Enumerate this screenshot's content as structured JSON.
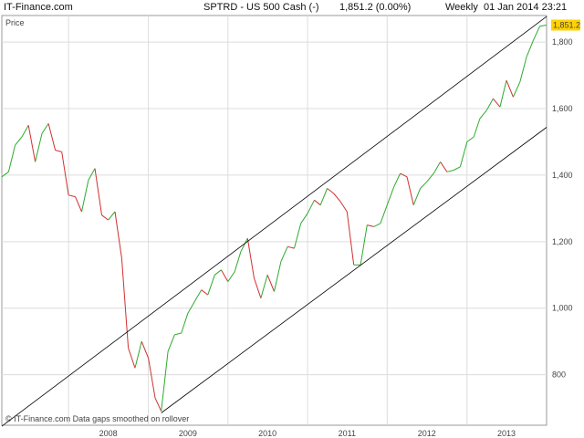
{
  "header": {
    "brand": "IT-Finance.com",
    "symbol_line": "SPTRD - US 500 Cash (-)",
    "last_line": "1,851.2 (0.00%)",
    "period_line": "Weekly  01 Jan 2014 23:21"
  },
  "legend_label": "Price",
  "footer_note": "© IT-Finance.com  Data gaps smoothed on rollover",
  "colors": {
    "up": "#2eaa2e",
    "down": "#d03030",
    "channel": "#000000",
    "last_badge": "#ffd200",
    "grid": "#dcdcdc"
  },
  "chart_data": {
    "type": "line",
    "title": "SPTRD - US 500 Cash (-)",
    "xlabel": "",
    "ylabel": "",
    "x_ticks": [
      "2008",
      "2009",
      "2010",
      "2011",
      "2012",
      "2013"
    ],
    "y_ticks": [
      "800",
      "1,000",
      "1,200",
      "1,400",
      "1,600",
      "1,800"
    ],
    "y_tick_values": [
      800,
      1000,
      1200,
      1400,
      1600,
      1800
    ],
    "xlim": [
      "2007-03-01",
      "2014-01-01"
    ],
    "ylim": [
      648,
      1880
    ],
    "grid": true,
    "last_value_label": "1,851.2",
    "series": [
      {
        "points": [
          [
            "2007-03-01",
            1395
          ],
          [
            "2007-04-01",
            1410
          ],
          [
            "2007-05-01",
            1490
          ],
          [
            "2007-06-01",
            1515
          ],
          [
            "2007-07-01",
            1550
          ],
          [
            "2007-08-01",
            1440
          ],
          [
            "2007-09-01",
            1525
          ],
          [
            "2007-10-01",
            1555
          ],
          [
            "2007-11-01",
            1475
          ],
          [
            "2007-12-01",
            1470
          ],
          [
            "2008-01-01",
            1340
          ],
          [
            "2008-02-01",
            1335
          ],
          [
            "2008-03-01",
            1290
          ],
          [
            "2008-04-01",
            1385
          ],
          [
            "2008-05-01",
            1420
          ],
          [
            "2008-06-01",
            1280
          ],
          [
            "2008-07-01",
            1265
          ],
          [
            "2008-08-01",
            1290
          ],
          [
            "2008-09-01",
            1150
          ],
          [
            "2008-10-01",
            880
          ],
          [
            "2008-11-01",
            820
          ],
          [
            "2008-12-01",
            900
          ],
          [
            "2009-01-01",
            850
          ],
          [
            "2009-02-01",
            730
          ],
          [
            "2009-03-01",
            690
          ],
          [
            "2009-04-01",
            870
          ],
          [
            "2009-05-01",
            920
          ],
          [
            "2009-06-01",
            925
          ],
          [
            "2009-07-01",
            985
          ],
          [
            "2009-08-01",
            1020
          ],
          [
            "2009-09-01",
            1055
          ],
          [
            "2009-10-01",
            1040
          ],
          [
            "2009-11-01",
            1100
          ],
          [
            "2009-12-01",
            1115
          ],
          [
            "2010-01-01",
            1080
          ],
          [
            "2010-02-01",
            1110
          ],
          [
            "2010-03-01",
            1170
          ],
          [
            "2010-04-01",
            1210
          ],
          [
            "2010-05-01",
            1090
          ],
          [
            "2010-06-01",
            1030
          ],
          [
            "2010-07-01",
            1100
          ],
          [
            "2010-08-01",
            1050
          ],
          [
            "2010-09-01",
            1140
          ],
          [
            "2010-10-01",
            1185
          ],
          [
            "2010-11-01",
            1180
          ],
          [
            "2010-12-01",
            1255
          ],
          [
            "2011-01-01",
            1285
          ],
          [
            "2011-02-01",
            1325
          ],
          [
            "2011-03-01",
            1310
          ],
          [
            "2011-04-01",
            1360
          ],
          [
            "2011-05-01",
            1345
          ],
          [
            "2011-06-01",
            1320
          ],
          [
            "2011-07-01",
            1290
          ],
          [
            "2011-08-01",
            1130
          ],
          [
            "2011-09-01",
            1130
          ],
          [
            "2011-10-01",
            1250
          ],
          [
            "2011-11-01",
            1245
          ],
          [
            "2011-12-01",
            1255
          ],
          [
            "2012-01-01",
            1310
          ],
          [
            "2012-02-01",
            1365
          ],
          [
            "2012-03-01",
            1405
          ],
          [
            "2012-04-01",
            1395
          ],
          [
            "2012-05-01",
            1310
          ],
          [
            "2012-06-01",
            1360
          ],
          [
            "2012-07-01",
            1380
          ],
          [
            "2012-08-01",
            1405
          ],
          [
            "2012-09-01",
            1440
          ],
          [
            "2012-10-01",
            1410
          ],
          [
            "2012-11-01",
            1415
          ],
          [
            "2012-12-01",
            1425
          ],
          [
            "2013-01-01",
            1500
          ],
          [
            "2013-02-01",
            1515
          ],
          [
            "2013-03-01",
            1570
          ],
          [
            "2013-04-01",
            1595
          ],
          [
            "2013-05-01",
            1630
          ],
          [
            "2013-06-01",
            1605
          ],
          [
            "2013-07-01",
            1685
          ],
          [
            "2013-08-01",
            1635
          ],
          [
            "2013-09-01",
            1680
          ],
          [
            "2013-10-01",
            1755
          ],
          [
            "2013-11-01",
            1805
          ],
          [
            "2013-12-01",
            1848
          ],
          [
            "2013-12-31",
            1851.2
          ]
        ]
      }
    ],
    "channel_lines": [
      {
        "start": [
          "2007-03-01",
          645
        ],
        "end": [
          "2014-01-01",
          1877
        ]
      },
      {
        "start": [
          "2009-03-01",
          685
        ],
        "end": [
          "2014-01-01",
          1544
        ]
      }
    ]
  }
}
